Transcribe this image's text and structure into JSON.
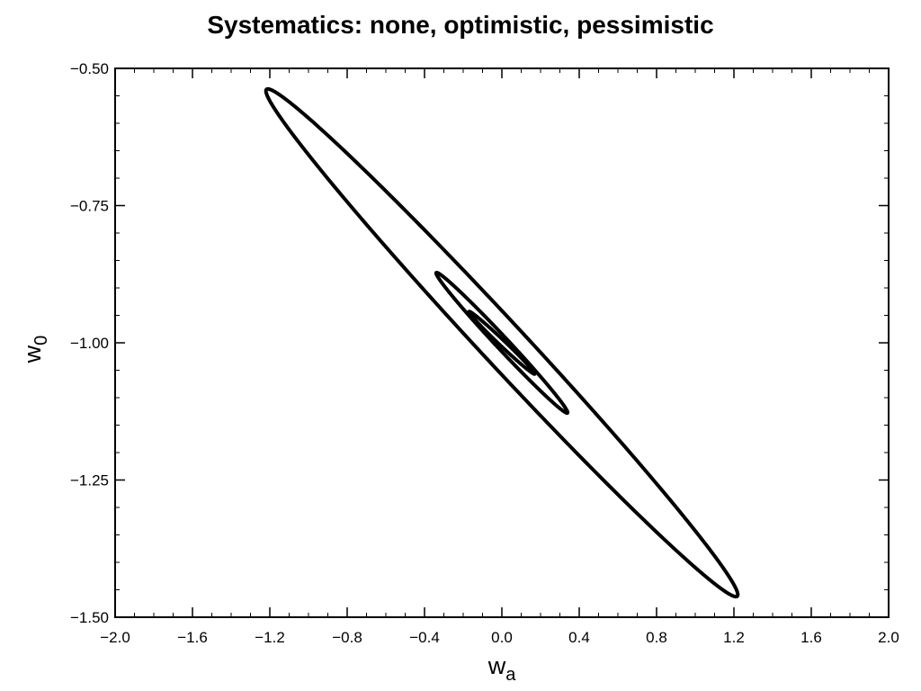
{
  "chart_data": {
    "type": "line",
    "title": "Systematics: none, optimistic, pessimistic",
    "xlabel_main": "w",
    "xlabel_sub": "a",
    "ylabel_main": "w",
    "ylabel_sub": "0",
    "xlim": [
      -2.0,
      2.0
    ],
    "ylim": [
      -1.5,
      -0.5
    ],
    "x_ticks": [
      -2.0,
      -1.6,
      -1.2,
      -0.8,
      -0.4,
      0.0,
      0.4,
      0.8,
      1.2,
      1.6,
      2.0
    ],
    "x_tick_labels": [
      "−2.0",
      "−1.6",
      "−1.2",
      "−0.8",
      "−0.4",
      "0.0",
      "0.4",
      "0.8",
      "1.2",
      "1.6",
      "2.0"
    ],
    "y_ticks": [
      -0.5,
      -0.75,
      -1.0,
      -1.25,
      -1.5
    ],
    "y_tick_labels": [
      "−0.50",
      "−0.75",
      "−1.00",
      "−1.25",
      "−1.50"
    ],
    "grid": false,
    "line_color": "#000000",
    "series": [
      {
        "center": [
          0.0,
          -1.0
        ],
        "wa_range": [
          -1.22,
          1.22
        ],
        "w0_range": [
          -1.46,
          -0.535
        ],
        "orientation": "negative-correlation"
      },
      {
        "center": [
          0.0,
          -1.0
        ],
        "wa_range": [
          -0.34,
          0.34
        ],
        "w0_range": [
          -1.128,
          -0.872
        ],
        "orientation": "negative-correlation"
      },
      {
        "center": [
          0.0,
          -1.0
        ],
        "wa_range": [
          -0.17,
          0.17
        ],
        "w0_range": [
          -1.057,
          -0.943
        ],
        "orientation": "negative-correlation"
      }
    ]
  }
}
